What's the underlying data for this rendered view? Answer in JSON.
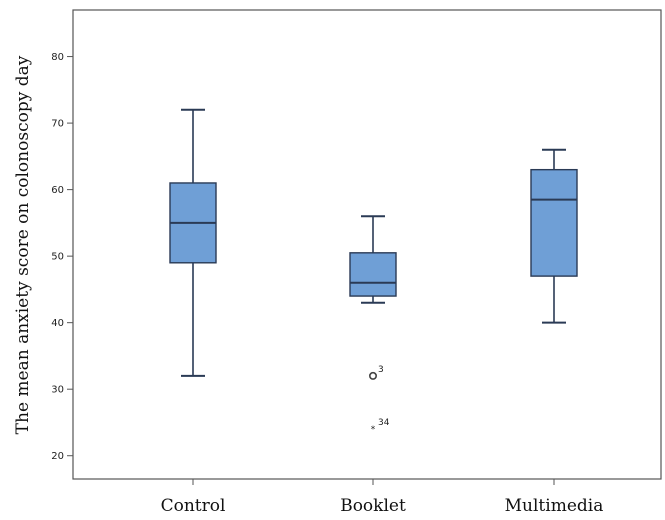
{
  "chart_data": {
    "type": "boxplot",
    "title": "",
    "xlabel": "",
    "ylabel": "The mean anxiety score on colonoscopy day",
    "ylim": [
      16.5,
      87
    ],
    "yticks": [
      20,
      30,
      40,
      50,
      60,
      70,
      80
    ],
    "categories": [
      "Control",
      "Booklet",
      "Multimedia"
    ],
    "boxes": [
      {
        "category": "Control",
        "whisker_low": 32,
        "q1": 49,
        "median": 55,
        "q3": 61,
        "whisker_high": 72,
        "outliers": []
      },
      {
        "category": "Booklet",
        "whisker_low": 43,
        "q1": 44,
        "median": 46,
        "q3": 50.5,
        "whisker_high": 56,
        "outliers": [
          {
            "value": 32,
            "label": "3",
            "extreme": false
          },
          {
            "value": 24,
            "label": "34",
            "extreme": true
          }
        ]
      },
      {
        "category": "Multimedia",
        "whisker_low": 40,
        "q1": 47,
        "median": 58.5,
        "q3": 63,
        "whisker_high": 66,
        "outliers": []
      }
    ],
    "grid": false,
    "legend": "none"
  },
  "colors": {
    "box_fill": "#6f9fd6",
    "box_stroke": "#2a3a55",
    "frame": "#555555",
    "text": "#111111"
  }
}
